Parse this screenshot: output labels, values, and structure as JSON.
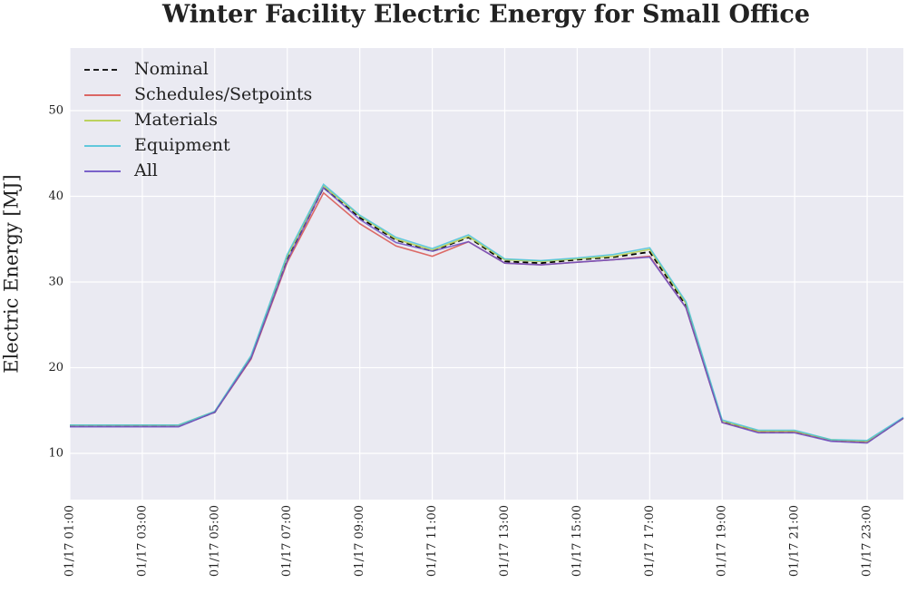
{
  "chart_data": {
    "type": "line",
    "title": "Winter Facility Electric Energy for Small Office",
    "ylabel": "Electric Energy [MJ]",
    "x": [
      "01/17 01:00",
      "01/17 02:00",
      "01/17 03:00",
      "01/17 04:00",
      "01/17 05:00",
      "01/17 06:00",
      "01/17 07:00",
      "01/17 08:00",
      "01/17 09:00",
      "01/17 10:00",
      "01/17 11:00",
      "01/17 12:00",
      "01/17 13:00",
      "01/17 14:00",
      "01/17 15:00",
      "01/17 16:00",
      "01/17 17:00",
      "01/17 18:00",
      "01/17 19:00",
      "01/17 20:00",
      "01/17 21:00",
      "01/17 22:00",
      "01/17 23:00",
      "01/18 00:00"
    ],
    "series": [
      {
        "name": "Nominal",
        "color": "#000000",
        "dash": true,
        "values": [
          13.2,
          13.2,
          13.2,
          13.2,
          14.8,
          21.2,
          32.6,
          41.0,
          37.5,
          34.9,
          33.6,
          35.2,
          32.4,
          32.2,
          32.6,
          32.9,
          33.5,
          27.3,
          13.7,
          12.5,
          12.5,
          11.5,
          11.3,
          14.1
        ]
      },
      {
        "name": "Schedules/Setpoints",
        "color": "#d9534f",
        "values": [
          13.2,
          13.2,
          13.2,
          13.2,
          14.8,
          21.0,
          32.3,
          40.4,
          36.8,
          34.2,
          33.0,
          34.7,
          32.2,
          32.0,
          32.3,
          32.6,
          33.0,
          27.0,
          13.6,
          12.5,
          12.5,
          11.5,
          11.3,
          14.1
        ]
      },
      {
        "name": "Materials",
        "color": "#b5cf4a",
        "values": [
          13.3,
          13.3,
          13.3,
          13.3,
          14.9,
          21.3,
          33.0,
          41.2,
          37.7,
          35.0,
          33.7,
          35.3,
          32.6,
          32.4,
          32.7,
          33.0,
          33.8,
          27.5,
          13.8,
          12.6,
          12.6,
          11.6,
          11.4,
          14.1
        ]
      },
      {
        "name": "Equipment",
        "color": "#4cc3d9",
        "values": [
          13.3,
          13.3,
          13.3,
          13.3,
          14.9,
          21.4,
          33.2,
          41.4,
          37.8,
          35.2,
          33.9,
          35.5,
          32.7,
          32.5,
          32.8,
          33.2,
          34.0,
          27.7,
          13.9,
          12.7,
          12.7,
          11.6,
          11.5,
          14.2
        ]
      },
      {
        "name": "All",
        "color": "#6a4fc4",
        "values": [
          13.1,
          13.1,
          13.1,
          13.1,
          14.8,
          21.1,
          32.5,
          41.0,
          37.3,
          34.6,
          33.6,
          34.7,
          32.2,
          32.0,
          32.3,
          32.6,
          32.9,
          27.0,
          13.6,
          12.4,
          12.4,
          11.4,
          11.2,
          14.1
        ]
      }
    ],
    "xlim": [
      "01/17 01:00",
      "01/18 00:00"
    ],
    "xticks": [
      "01/17 01:00",
      "01/17 03:00",
      "01/17 05:00",
      "01/17 07:00",
      "01/17 09:00",
      "01/17 11:00",
      "01/17 13:00",
      "01/17 15:00",
      "01/17 17:00",
      "01/17 19:00",
      "01/17 21:00",
      "01/17 23:00"
    ],
    "ylim": [
      4.6,
      57.3
    ],
    "yticks": [
      10,
      20,
      30,
      40,
      50
    ],
    "grid": true,
    "legend": "upper left"
  }
}
